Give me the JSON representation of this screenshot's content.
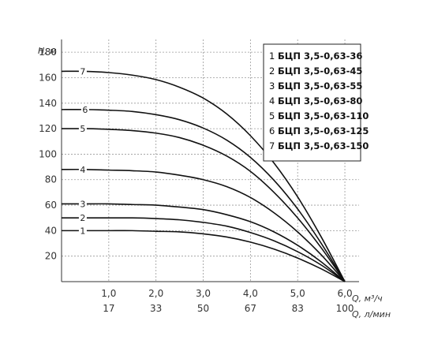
{
  "chart_data": {
    "type": "line",
    "title": "",
    "ylabel": "H, м",
    "xlabel": "Q, м³/ч",
    "xlabel2": "Q, л/мин",
    "xlim": [
      0,
      6.3
    ],
    "ylim": [
      0,
      190
    ],
    "x_ticks": [
      "1,0",
      "2,0",
      "3,0",
      "4,0",
      "5,0",
      "6,0"
    ],
    "x_ticks_values": [
      1,
      2,
      3,
      4,
      5,
      6
    ],
    "x2_ticks": [
      "17",
      "33",
      "50",
      "67",
      "83",
      "100"
    ],
    "y_ticks": [
      "20",
      "40",
      "60",
      "80",
      "100",
      "120",
      "140",
      "160",
      "180"
    ],
    "y_ticks_values": [
      20,
      40,
      60,
      80,
      100,
      120,
      140,
      160,
      180
    ],
    "grid": true,
    "legend_position": "top-right",
    "series": [
      {
        "name": "БЦП 3,5-0,63-36",
        "number": "1",
        "x": [
          0,
          0.5,
          1,
          1.5,
          2,
          2.5,
          3,
          3.5,
          4,
          4.5,
          5,
          5.5,
          6.0
        ],
        "y": [
          40,
          40,
          40,
          40,
          39.5,
          39,
          37.5,
          35,
          31,
          25.5,
          18.5,
          10,
          0
        ]
      },
      {
        "name": "БЦП 3,5-0,63-45",
        "number": "2",
        "x": [
          0,
          0.5,
          1,
          1.5,
          2,
          2.5,
          3,
          3.5,
          4,
          4.5,
          5,
          5.5,
          6.0
        ],
        "y": [
          50,
          50,
          50,
          50,
          49.5,
          48.5,
          46.5,
          43.5,
          38.5,
          32,
          23.5,
          13,
          0
        ]
      },
      {
        "name": "БЦП 3,5-0,63-55",
        "number": "3",
        "x": [
          0,
          0.5,
          1,
          1.5,
          2,
          2.5,
          3,
          3.5,
          4,
          4.5,
          5,
          5.5,
          6.0
        ],
        "y": [
          61,
          61,
          61,
          60.5,
          60,
          58.5,
          56.5,
          52.5,
          47,
          39,
          28.5,
          15.5,
          0
        ]
      },
      {
        "name": "БЦП 3,5-0,63-80",
        "number": "4",
        "x": [
          0,
          0.5,
          1,
          1.5,
          2,
          2.5,
          3,
          3.5,
          4,
          4.5,
          5,
          5.5,
          6.0
        ],
        "y": [
          88,
          88,
          87.5,
          87,
          86,
          83.5,
          80,
          74.5,
          66,
          54,
          39,
          21,
          0
        ]
      },
      {
        "name": "БЦП 3,5-0,63-110",
        "number": "5",
        "x": [
          0,
          0.5,
          1,
          1.5,
          2,
          2.5,
          3,
          3.5,
          4,
          4.5,
          5,
          5.5,
          6.0
        ],
        "y": [
          120,
          120,
          119.5,
          118.5,
          116.5,
          113,
          107,
          98.5,
          86.5,
          70,
          50,
          26.5,
          0
        ]
      },
      {
        "name": "БЦП 3,5-0,63-125",
        "number": "6",
        "x": [
          0,
          0.5,
          1,
          1.5,
          2,
          2.5,
          3,
          3.5,
          4,
          4.5,
          5,
          5.5,
          6.0
        ],
        "y": [
          135,
          135,
          134.5,
          133.5,
          131,
          127,
          120.5,
          111,
          97.5,
          79.5,
          57,
          30,
          0
        ]
      },
      {
        "name": "БЦП 3,5-0,63-150",
        "number": "7",
        "x": [
          0,
          0.5,
          1,
          1.5,
          2,
          2.5,
          3,
          3.5,
          4,
          4.5,
          5,
          5.5,
          6.0
        ],
        "y": [
          165,
          165,
          164,
          162,
          158.5,
          152.5,
          144,
          131.5,
          114.5,
          93,
          66.5,
          35,
          0
        ]
      }
    ],
    "curve_label_x": [
      0.45,
      0.45,
      0.45,
      0.45,
      0.45,
      0.5,
      0.45
    ]
  },
  "colors": {
    "curve": "#111111",
    "grid": "#999999",
    "axis": "#333333",
    "legend_border": "#222222"
  }
}
